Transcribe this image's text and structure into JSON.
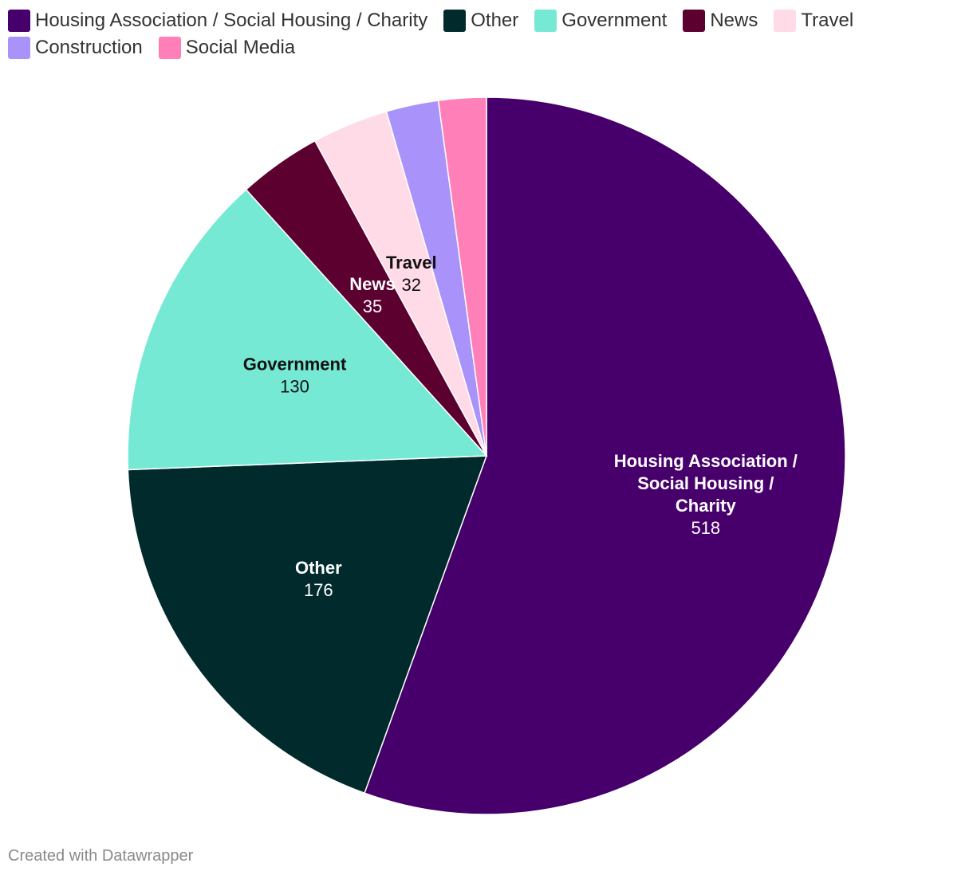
{
  "chart_data": {
    "type": "pie",
    "categories": [
      "Housing Association / Social Housing / Charity",
      "Other",
      "Government",
      "News",
      "Travel",
      "Construction",
      "Social Media"
    ],
    "values": [
      518,
      176,
      130,
      35,
      32,
      22,
      20
    ],
    "colors": [
      "#47006b",
      "#002a2b",
      "#76e9d5",
      "#5b002f",
      "#ffdbe7",
      "#a992f9",
      "#ff80b8"
    ],
    "label_colors": [
      "#ffffff",
      "#ffffff",
      "#111111",
      "#ffffff",
      "#111111",
      "#111111",
      "#111111"
    ],
    "slice_labels": [
      {
        "lines": [
          "Housing Association /",
          "Social Housing /",
          "Charity"
        ],
        "value": "518"
      },
      {
        "lines": [
          "Other"
        ],
        "value": "176"
      },
      {
        "lines": [
          "Government"
        ],
        "value": "130"
      },
      {
        "lines": [
          "News"
        ],
        "value": "35"
      },
      {
        "lines": [
          "Travel"
        ],
        "value": "32"
      },
      null,
      null
    ],
    "legend_placement": "top-left"
  },
  "footer": {
    "credit": "Created with Datawrapper"
  }
}
